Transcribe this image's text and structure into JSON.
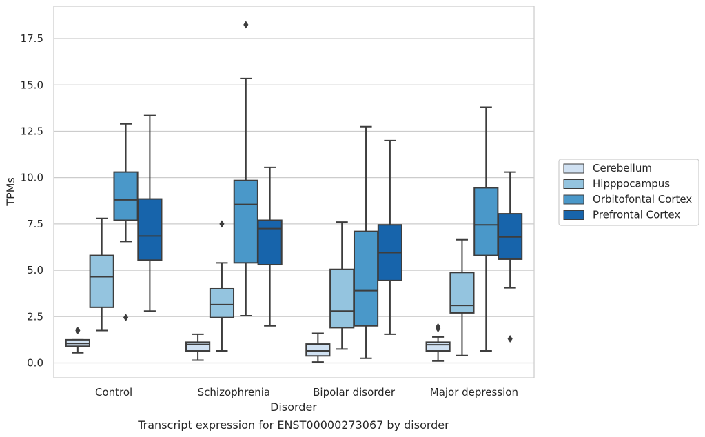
{
  "chart_data": {
    "type": "boxplot",
    "title": "Transcript expression for ENST00000273067 by disorder",
    "xlabel": "Disorder",
    "ylabel": "TPMs",
    "ylim": [
      -0.8,
      19.25
    ],
    "yticks": [
      "0.0",
      "2.5",
      "5.0",
      "7.5",
      "10.0",
      "12.5",
      "15.0",
      "17.5"
    ],
    "ytick_values": [
      0,
      2.5,
      5,
      7.5,
      10,
      12.5,
      15,
      17.5
    ],
    "grid": "horizontal",
    "legend_position": "right",
    "categories": [
      "Control",
      "Schizophrenia",
      "Bipolar disorder",
      "Major depression"
    ],
    "series": [
      {
        "name": "Cerebellum",
        "color": "#d0e1f2",
        "boxes": [
          {
            "whislo": 0.55,
            "q1": 0.9,
            "med": 1.05,
            "q3": 1.25,
            "whishi": 1.25,
            "fliers": [
              1.75
            ]
          },
          {
            "whislo": 0.15,
            "q1": 0.65,
            "med": 1.0,
            "q3": 1.12,
            "whishi": 1.55,
            "fliers": []
          },
          {
            "whislo": 0.05,
            "q1": 0.38,
            "med": 0.65,
            "q3": 1.02,
            "whishi": 1.6,
            "fliers": []
          },
          {
            "whislo": 0.1,
            "q1": 0.65,
            "med": 0.98,
            "q3": 1.12,
            "whishi": 1.4,
            "fliers": [
              1.85,
              1.95
            ]
          }
        ]
      },
      {
        "name": "Hipppocampus",
        "color": "#94c4df",
        "boxes": [
          {
            "whislo": 1.75,
            "q1": 3.0,
            "med": 4.65,
            "q3": 5.8,
            "whishi": 7.8,
            "fliers": []
          },
          {
            "whislo": 0.65,
            "q1": 2.45,
            "med": 3.15,
            "q3": 4.0,
            "whishi": 5.4,
            "fliers": [
              7.5
            ]
          },
          {
            "whislo": 0.75,
            "q1": 1.9,
            "med": 2.8,
            "q3": 5.05,
            "whishi": 7.6,
            "fliers": []
          },
          {
            "whislo": 0.4,
            "q1": 2.7,
            "med": 3.1,
            "q3": 4.88,
            "whishi": 6.65,
            "fliers": []
          }
        ]
      },
      {
        "name": "Orbitofontal Cortex",
        "color": "#4a98c9",
        "boxes": [
          {
            "whislo": 6.55,
            "q1": 7.7,
            "med": 8.8,
            "q3": 10.3,
            "whishi": 12.9,
            "fliers": [
              2.45
            ]
          },
          {
            "whislo": 2.55,
            "q1": 5.4,
            "med": 8.55,
            "q3": 9.85,
            "whishi": 15.35,
            "fliers": [
              18.25
            ]
          },
          {
            "whislo": 0.25,
            "q1": 2.0,
            "med": 3.9,
            "q3": 7.1,
            "whishi": 12.75,
            "fliers": []
          },
          {
            "whislo": 0.65,
            "q1": 5.8,
            "med": 7.45,
            "q3": 9.45,
            "whishi": 13.8,
            "fliers": []
          }
        ]
      },
      {
        "name": "Prefrontal Cortex",
        "color": "#1764ab",
        "boxes": [
          {
            "whislo": 2.8,
            "q1": 5.55,
            "med": 6.85,
            "q3": 8.85,
            "whishi": 13.35,
            "fliers": []
          },
          {
            "whislo": 2.0,
            "q1": 5.3,
            "med": 7.25,
            "q3": 7.7,
            "whishi": 10.55,
            "fliers": []
          },
          {
            "whislo": 1.55,
            "q1": 4.45,
            "med": 5.95,
            "q3": 7.45,
            "whishi": 12.0,
            "fliers": []
          },
          {
            "whislo": 4.05,
            "q1": 5.6,
            "med": 6.8,
            "q3": 8.05,
            "whishi": 10.3,
            "fliers": [
              1.3
            ]
          }
        ]
      }
    ]
  }
}
